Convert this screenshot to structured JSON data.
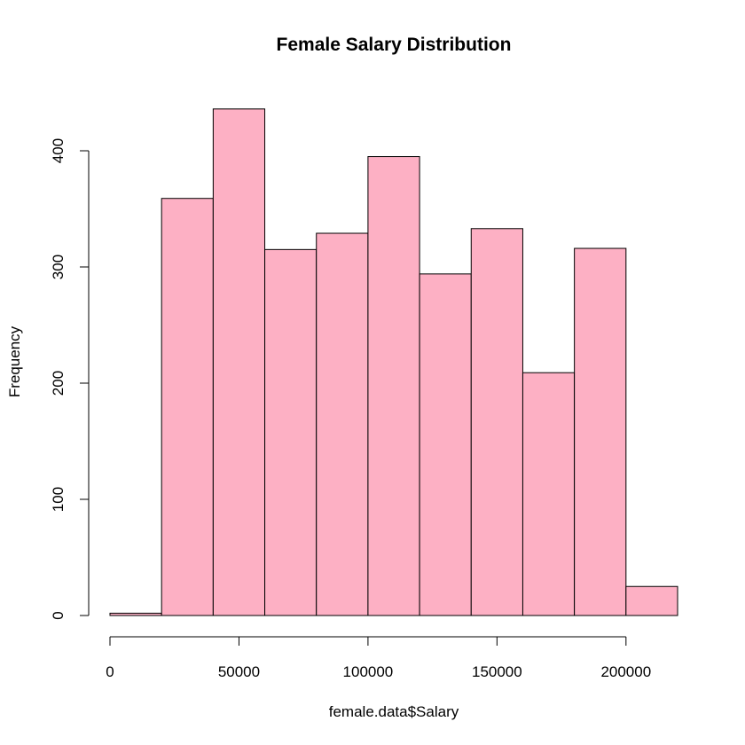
{
  "chart_data": {
    "type": "bar",
    "title": "Female Salary Distribution",
    "xlabel": "female.data$Salary",
    "ylabel": "Frequency",
    "bin_edges": [
      0,
      20000,
      40000,
      60000,
      80000,
      100000,
      120000,
      140000,
      160000,
      180000,
      200000,
      220000
    ],
    "values": [
      2,
      359,
      436,
      315,
      329,
      395,
      294,
      333,
      209,
      316,
      25
    ],
    "xlim": [
      0,
      220000
    ],
    "ylim": [
      0,
      436
    ],
    "x_ticks": [
      0,
      50000,
      100000,
      150000,
      200000
    ],
    "x_tick_labels": [
      "0",
      "50000",
      "100000",
      "150000",
      "200000"
    ],
    "y_ticks": [
      0,
      100,
      200,
      300,
      400
    ],
    "y_tick_labels": [
      "0",
      "100",
      "200",
      "300",
      "400"
    ],
    "bar_color": "#FDB0C4",
    "grid": false,
    "legend": "none"
  }
}
